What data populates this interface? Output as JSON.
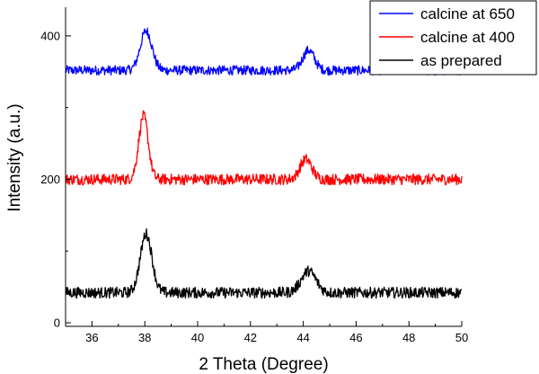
{
  "chart_data": {
    "type": "line",
    "title": "",
    "xlabel": "2 Theta (Degree)",
    "ylabel": "Intensity (a.u.)",
    "xlim": [
      35,
      50
    ],
    "ylim": [
      -5,
      440
    ],
    "xticks": [
      36,
      38,
      40,
      42,
      44,
      46,
      48,
      50
    ],
    "yticks": [
      0,
      200,
      400
    ],
    "y_minor_ticks": [
      100,
      300
    ],
    "grid": false,
    "legend_position": "top-right",
    "series": [
      {
        "name": "calcine at 650",
        "color": "#0000ff",
        "baseline": 352,
        "noise": 6,
        "peaks": [
          {
            "center": 38.05,
            "height": 55,
            "width": 0.22
          },
          {
            "center": 44.2,
            "height": 28,
            "width": 0.22
          }
        ],
        "points": [
          [
            35,
            354
          ],
          [
            36,
            350
          ],
          [
            37,
            355
          ],
          [
            37.6,
            365
          ],
          [
            38.0,
            412
          ],
          [
            38.5,
            365
          ],
          [
            39,
            354
          ],
          [
            40,
            350
          ],
          [
            41,
            352
          ],
          [
            42,
            349
          ],
          [
            43,
            352
          ],
          [
            43.8,
            356
          ],
          [
            44.2,
            380
          ],
          [
            44.6,
            362
          ],
          [
            45,
            354
          ],
          [
            46,
            352
          ],
          [
            47,
            349
          ],
          [
            48,
            347
          ],
          [
            49,
            346
          ],
          [
            50,
            345
          ]
        ]
      },
      {
        "name": "calcine at 400",
        "color": "#ff0000",
        "baseline": 200,
        "noise": 7,
        "peaks": [
          {
            "center": 37.95,
            "height": 88,
            "width": 0.18
          },
          {
            "center": 44.1,
            "height": 28,
            "width": 0.22
          }
        ],
        "points": [
          [
            35,
            200
          ],
          [
            36,
            202
          ],
          [
            37,
            206
          ],
          [
            37.6,
            220
          ],
          [
            37.95,
            295
          ],
          [
            38.4,
            225
          ],
          [
            39,
            208
          ],
          [
            40,
            203
          ],
          [
            41,
            200
          ],
          [
            42,
            198
          ],
          [
            43,
            202
          ],
          [
            43.7,
            206
          ],
          [
            44.1,
            232
          ],
          [
            44.6,
            214
          ],
          [
            45,
            205
          ],
          [
            46,
            203
          ],
          [
            47,
            200
          ],
          [
            48,
            198
          ],
          [
            49,
            196
          ],
          [
            50,
            196
          ]
        ]
      },
      {
        "name": "as prepared",
        "color": "#000000",
        "baseline": 42,
        "noise": 7,
        "peaks": [
          {
            "center": 38.05,
            "height": 82,
            "width": 0.22
          },
          {
            "center": 44.2,
            "height": 30,
            "width": 0.28
          }
        ],
        "points": [
          [
            35,
            42
          ],
          [
            36,
            45
          ],
          [
            37,
            50
          ],
          [
            37.6,
            70
          ],
          [
            38.05,
            135
          ],
          [
            38.6,
            70
          ],
          [
            39,
            52
          ],
          [
            40,
            45
          ],
          [
            41,
            43
          ],
          [
            42,
            40
          ],
          [
            43,
            44
          ],
          [
            43.8,
            58
          ],
          [
            44.2,
            75
          ],
          [
            44.7,
            55
          ],
          [
            45,
            45
          ],
          [
            46,
            42
          ],
          [
            47,
            40
          ],
          [
            48,
            38
          ],
          [
            49,
            38
          ],
          [
            50,
            38
          ]
        ]
      }
    ]
  }
}
